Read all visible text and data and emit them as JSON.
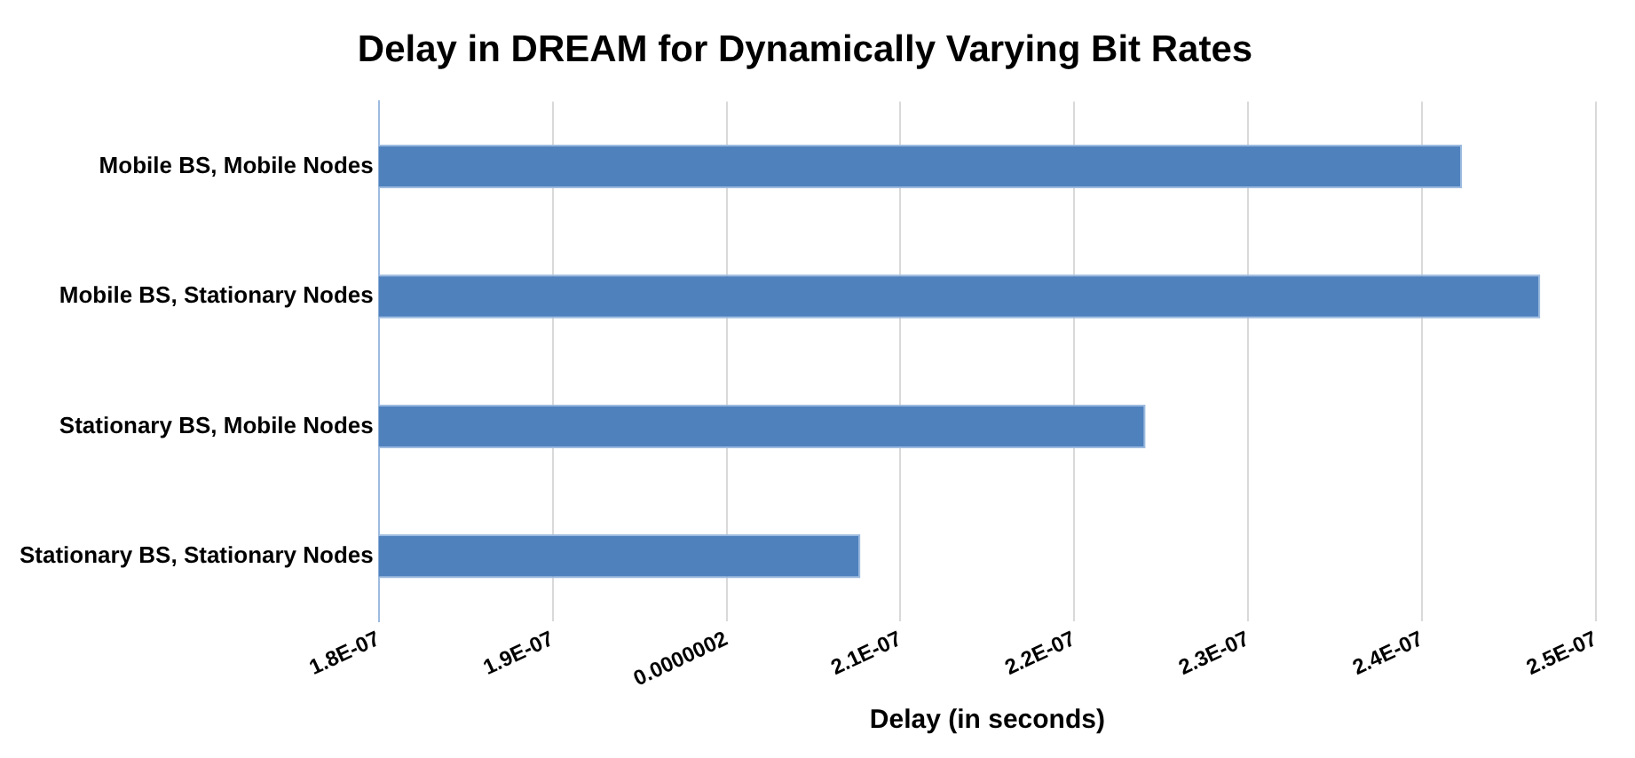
{
  "chart_data": {
    "type": "bar",
    "orientation": "horizontal",
    "title": "Delay in DREAM for Dynamically Varying Bit Rates",
    "xlabel": "Delay (in seconds)",
    "categories": [
      "Mobile BS, Mobile Nodes",
      "Mobile BS, Stationary Nodes",
      "Stationary BS, Mobile Nodes",
      "Stationary BS, Stationary Nodes"
    ],
    "values": [
      2.423e-07,
      2.468e-07,
      2.241e-07,
      2.077e-07
    ],
    "color": "#4f81bd",
    "xlim": [
      1.8e-07,
      2.5e-07
    ],
    "xticks": [
      {
        "value": 1.8e-07,
        "label": "1.8E-07"
      },
      {
        "value": 1.9e-07,
        "label": "1.9E-07"
      },
      {
        "value": 2e-07,
        "label": "0.0000002"
      },
      {
        "value": 2.1e-07,
        "label": "2.1E-07"
      },
      {
        "value": 2.2e-07,
        "label": "2.2E-07"
      },
      {
        "value": 2.3e-07,
        "label": "2.3E-07"
      },
      {
        "value": 2.4e-07,
        "label": "2.4E-07"
      },
      {
        "value": 2.5e-07,
        "label": "2.5E-07"
      }
    ],
    "grid": "x",
    "legend": false
  }
}
